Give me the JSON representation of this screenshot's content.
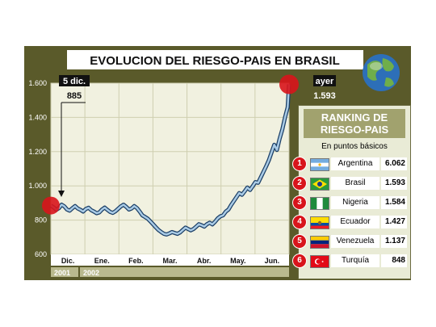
{
  "chart_data": {
    "type": "line",
    "title": "EVOLUCION DEL RIESGO-PAIS EN BRASIL",
    "y_ticks": [
      "1.600",
      "1.400",
      "1.200",
      "1.000",
      "800",
      "600"
    ],
    "ylim": [
      600,
      1600
    ],
    "x_labels": [
      "Dic.",
      "Ene.",
      "Feb.",
      "Mar.",
      "Abr.",
      "May.",
      "Jun."
    ],
    "years": [
      "2001",
      "2002"
    ],
    "grid": true,
    "series": [
      {
        "values": [
          [
            0,
            885
          ],
          [
            2,
            875
          ],
          [
            4,
            860
          ],
          [
            6,
            870
          ],
          [
            8,
            890
          ],
          [
            10,
            880
          ],
          [
            12,
            862
          ],
          [
            14,
            855
          ],
          [
            16,
            870
          ],
          [
            18,
            882
          ],
          [
            20,
            868
          ],
          [
            22,
            860
          ],
          [
            24,
            850
          ],
          [
            26,
            865
          ],
          [
            28,
            872
          ],
          [
            30,
            858
          ],
          [
            32,
            850
          ],
          [
            34,
            840
          ],
          [
            36,
            845
          ],
          [
            38,
            862
          ],
          [
            40,
            873
          ],
          [
            42,
            860
          ],
          [
            44,
            848
          ],
          [
            46,
            842
          ],
          [
            48,
            852
          ],
          [
            50,
            866
          ],
          [
            52,
            880
          ],
          [
            54,
            890
          ],
          [
            56,
            878
          ],
          [
            58,
            862
          ],
          [
            60,
            868
          ],
          [
            62,
            882
          ],
          [
            64,
            870
          ],
          [
            66,
            850
          ],
          [
            68,
            828
          ],
          [
            70,
            818
          ],
          [
            72,
            808
          ],
          [
            74,
            792
          ],
          [
            76,
            775
          ],
          [
            78,
            758
          ],
          [
            80,
            742
          ],
          [
            82,
            730
          ],
          [
            84,
            720
          ],
          [
            86,
            716
          ],
          [
            88,
            722
          ],
          [
            90,
            730
          ],
          [
            92,
            725
          ],
          [
            94,
            720
          ],
          [
            96,
            728
          ],
          [
            98,
            742
          ],
          [
            100,
            756
          ],
          [
            102,
            748
          ],
          [
            104,
            740
          ],
          [
            106,
            748
          ],
          [
            108,
            762
          ],
          [
            110,
            776
          ],
          [
            112,
            770
          ],
          [
            114,
            762
          ],
          [
            116,
            776
          ],
          [
            118,
            785
          ],
          [
            120,
            775
          ],
          [
            122,
            790
          ],
          [
            124,
            810
          ],
          [
            126,
            822
          ],
          [
            128,
            828
          ],
          [
            130,
            850
          ],
          [
            132,
            862
          ],
          [
            134,
            888
          ],
          [
            136,
            912
          ],
          [
            138,
            935
          ],
          [
            140,
            958
          ],
          [
            142,
            948
          ],
          [
            144,
            968
          ],
          [
            146,
            990
          ],
          [
            148,
            976
          ],
          [
            150,
            998
          ],
          [
            152,
            1022
          ],
          [
            154,
            1018
          ],
          [
            156,
            1050
          ],
          [
            158,
            1082
          ],
          [
            160,
            1115
          ],
          [
            162,
            1150
          ],
          [
            164,
            1195
          ],
          [
            166,
            1240
          ],
          [
            168,
            1210
          ],
          [
            170,
            1275
          ],
          [
            172,
            1330
          ],
          [
            174,
            1400
          ],
          [
            176,
            1460
          ],
          [
            177,
            1593
          ]
        ]
      }
    ],
    "annotations": [
      {
        "label": "5 dic.",
        "value": "885"
      },
      {
        "label": "ayer",
        "value": "1.593"
      }
    ]
  },
  "ranking": {
    "title_line1": "RANKING DE",
    "title_line2": "RIESGO-PAIS",
    "subtitle": "En puntos básicos",
    "items": [
      {
        "num": "1",
        "country": "Argentina",
        "value": "6.062",
        "flag": "argentina"
      },
      {
        "num": "2",
        "country": "Brasil",
        "value": "1.593",
        "flag": "brasil"
      },
      {
        "num": "3",
        "country": "Nigeria",
        "value": "1.584",
        "flag": "nigeria"
      },
      {
        "num": "4",
        "country": "Ecuador",
        "value": "1.427",
        "flag": "ecuador"
      },
      {
        "num": "5",
        "country": "Venezuela",
        "value": "1.137",
        "flag": "venezuela"
      },
      {
        "num": "6",
        "country": "Turquía",
        "value": "848",
        "flag": "turquia"
      }
    ]
  },
  "colors": {
    "frame": "#5a5a2a",
    "plot_bg": "#f1f1e0",
    "line": "#a9cbe6",
    "line_edge": "#1c3f66",
    "accent_red": "#d8141b"
  }
}
